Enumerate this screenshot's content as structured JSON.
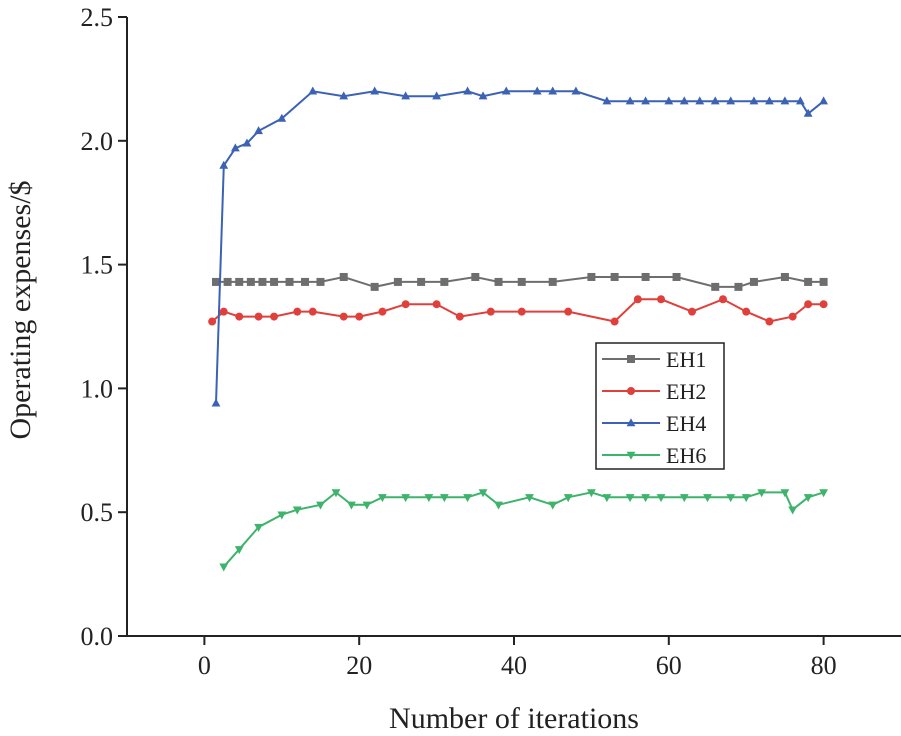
{
  "chart_data": {
    "type": "line",
    "title": "",
    "xlabel": "Number of iterations",
    "ylabel": "Operating expenses/$",
    "xlim": [
      -10,
      90
    ],
    "ylim": [
      0,
      2.5
    ],
    "xticks": [
      0,
      20,
      40,
      60,
      80
    ],
    "xtick_labels": [
      "0",
      "20",
      "40",
      "60",
      "80"
    ],
    "yticks": [
      0,
      0.5,
      1.0,
      1.5,
      2.0,
      2.5
    ],
    "ytick_labels": [
      "0.0",
      "0.5",
      "1.0",
      "1.5",
      "2.0",
      "2.5"
    ],
    "legend_position": "center-right",
    "series": [
      {
        "name": "EH1",
        "color": "#6e6e6e",
        "marker": "square",
        "x": [
          1.5,
          3,
          4.5,
          6,
          7.5,
          9,
          11,
          13,
          15,
          18,
          22,
          25,
          28,
          31,
          35,
          38,
          41,
          45,
          50,
          53,
          57,
          61,
          66,
          69,
          71,
          75,
          78,
          80
        ],
        "y": [
          1.43,
          1.43,
          1.43,
          1.43,
          1.43,
          1.43,
          1.43,
          1.43,
          1.43,
          1.45,
          1.41,
          1.43,
          1.43,
          1.43,
          1.45,
          1.43,
          1.43,
          1.43,
          1.45,
          1.45,
          1.45,
          1.45,
          1.41,
          1.41,
          1.43,
          1.45,
          1.43,
          1.43
        ]
      },
      {
        "name": "EH2",
        "color": "#e0403c",
        "marker": "circle",
        "x": [
          1,
          2.5,
          4.5,
          7,
          9,
          12,
          14,
          18,
          20,
          23,
          26,
          30,
          33,
          37,
          41,
          47,
          53,
          56,
          59,
          63,
          67,
          70,
          73,
          76,
          78,
          80
        ],
        "y": [
          1.27,
          1.31,
          1.29,
          1.29,
          1.29,
          1.31,
          1.31,
          1.29,
          1.29,
          1.31,
          1.34,
          1.34,
          1.29,
          1.31,
          1.31,
          1.31,
          1.27,
          1.36,
          1.36,
          1.31,
          1.36,
          1.31,
          1.27,
          1.29,
          1.34,
          1.34
        ]
      },
      {
        "name": "EH4",
        "color": "#3b62b4",
        "marker": "triangle-up",
        "x": [
          1.5,
          2.5,
          4,
          5.5,
          7,
          10,
          14,
          18,
          22,
          26,
          30,
          34,
          36,
          39,
          43,
          45,
          48,
          52,
          55,
          57,
          60,
          62,
          64,
          66,
          68,
          71,
          73,
          75,
          77,
          78,
          80
        ],
        "y": [
          0.94,
          1.9,
          1.97,
          1.99,
          2.04,
          2.09,
          2.2,
          2.18,
          2.2,
          2.18,
          2.18,
          2.2,
          2.18,
          2.2,
          2.2,
          2.2,
          2.2,
          2.16,
          2.16,
          2.16,
          2.16,
          2.16,
          2.16,
          2.16,
          2.16,
          2.16,
          2.16,
          2.16,
          2.16,
          2.11,
          2.16
        ]
      },
      {
        "name": "EH6",
        "color": "#3db36b",
        "marker": "triangle-down",
        "x": [
          2.5,
          4.5,
          7,
          10,
          12,
          15,
          17,
          19,
          21,
          23,
          26,
          29,
          31,
          34,
          36,
          38,
          42,
          45,
          47,
          50,
          52,
          55,
          57,
          59,
          62,
          65,
          68,
          70,
          72,
          75,
          76,
          78,
          80
        ],
        "y": [
          0.28,
          0.35,
          0.44,
          0.49,
          0.51,
          0.53,
          0.58,
          0.53,
          0.53,
          0.56,
          0.56,
          0.56,
          0.56,
          0.56,
          0.58,
          0.53,
          0.56,
          0.53,
          0.56,
          0.58,
          0.56,
          0.56,
          0.56,
          0.56,
          0.56,
          0.56,
          0.56,
          0.56,
          0.58,
          0.58,
          0.51,
          0.56,
          0.58
        ]
      }
    ]
  }
}
